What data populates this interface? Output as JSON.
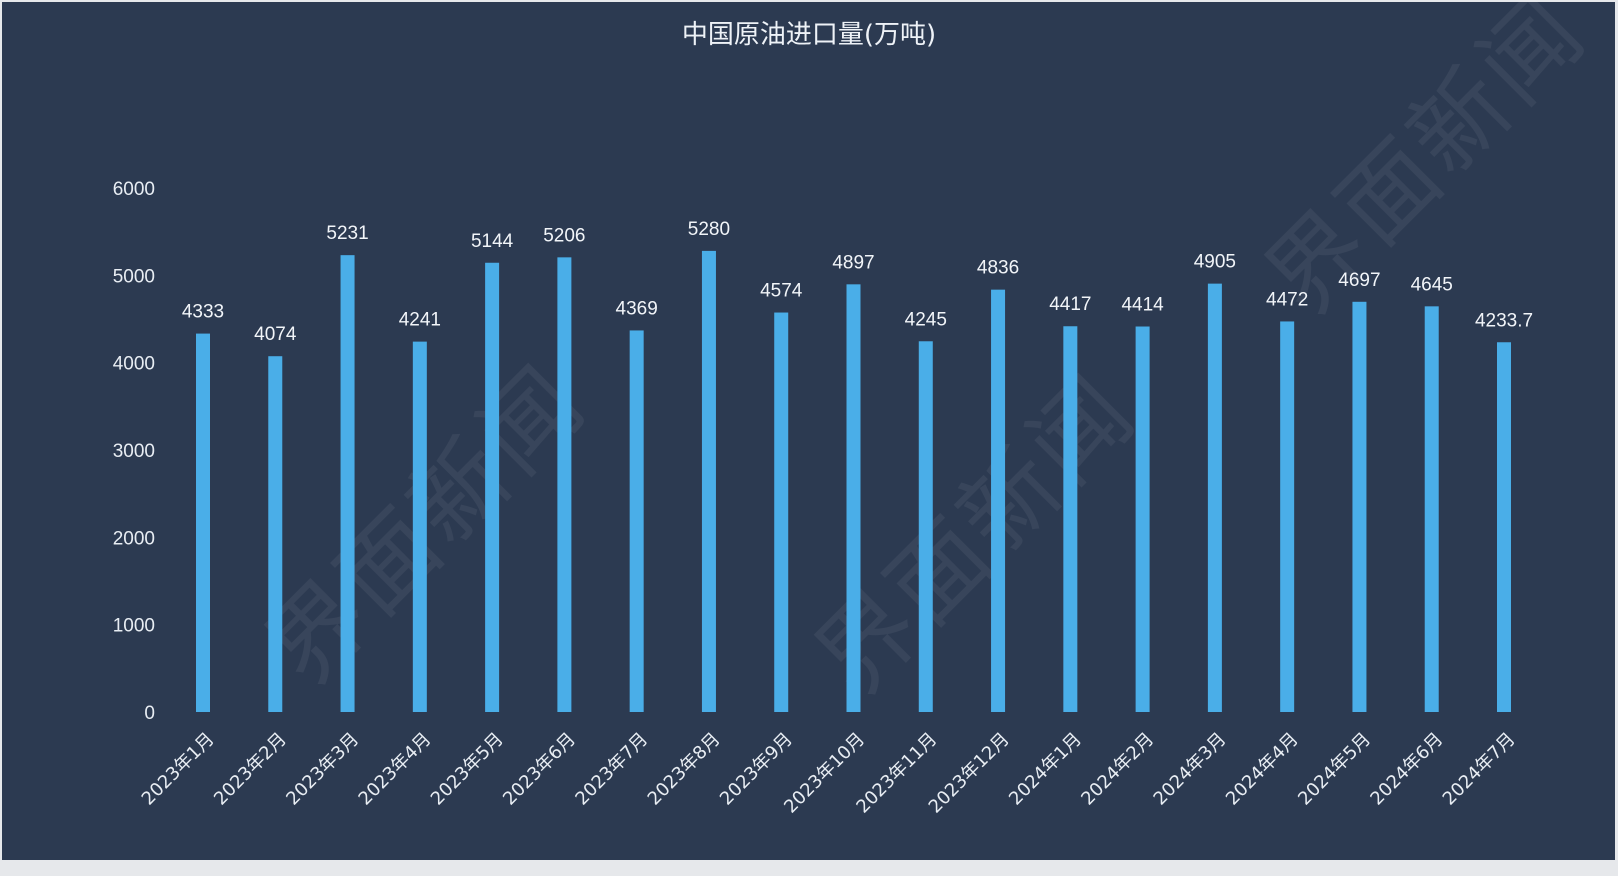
{
  "chart_data": {
    "type": "bar",
    "title": "中国原油进口量(万吨)",
    "xlabel": "",
    "ylabel": "",
    "ylim": [
      0,
      6000
    ],
    "yticks": [
      0,
      1000,
      2000,
      3000,
      4000,
      5000,
      6000
    ],
    "grid": false,
    "bar_color": "#4aaee8",
    "categories": [
      "2023年1月",
      "2023年2月",
      "2023年3月",
      "2023年4月",
      "2023年5月",
      "2023年6月",
      "2023年7月",
      "2023年8月",
      "2023年9月",
      "2023年10月",
      "2023年11月",
      "2023年12月",
      "2024年1月",
      "2024年2月",
      "2024年3月",
      "2024年4月",
      "2024年5月",
      "2024年6月",
      "2024年7月"
    ],
    "values": [
      4333,
      4074,
      5231,
      4241,
      5144,
      5206,
      4369,
      5280,
      4574,
      4897,
      4245,
      4836,
      4417,
      4414,
      4905,
      4472,
      4697,
      4645,
      4233.7
    ],
    "data_labels": [
      "4333",
      "4074",
      "5231",
      "4241",
      "5144",
      "5206",
      "4369",
      "5280",
      "4574",
      "4897",
      "4245",
      "4836",
      "4417",
      "4414",
      "4905",
      "4472",
      "4697",
      "4645",
      "4233.7"
    ]
  },
  "watermark": "界面新闻"
}
